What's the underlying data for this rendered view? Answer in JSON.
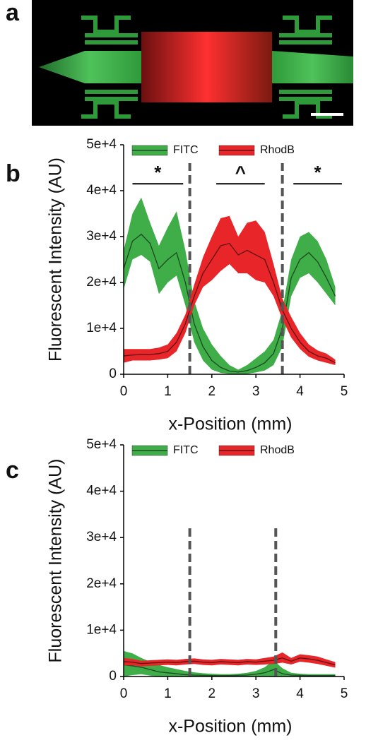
{
  "image_panel": {
    "label": "a"
  },
  "chart_data": [
    {
      "type": "line",
      "label": "b",
      "xlabel": "x-Position (mm)",
      "ylabel": "Fluorescent Intensity (AU)",
      "x": [
        0,
        0.2,
        0.4,
        0.6,
        0.8,
        1.0,
        1.2,
        1.4,
        1.6,
        1.8,
        2.0,
        2.2,
        2.4,
        2.6,
        2.8,
        3.0,
        3.2,
        3.4,
        3.6,
        3.8,
        4.0,
        4.2,
        4.4,
        4.6,
        4.8
      ],
      "series": [
        {
          "name": "FITC",
          "color": "#3fae49",
          "values": [
            23000,
            29000,
            30500,
            28500,
            23000,
            25000,
            26500,
            20000,
            11000,
            6000,
            3000,
            1500,
            700,
            500,
            800,
            1500,
            2500,
            4500,
            10000,
            21000,
            25000,
            26500,
            24500,
            21000,
            17000
          ],
          "lower": [
            18500,
            25000,
            26000,
            24500,
            17500,
            20000,
            21500,
            15000,
            7000,
            3000,
            1000,
            300,
            100,
            0,
            100,
            400,
            800,
            2000,
            6000,
            17000,
            21000,
            22000,
            20000,
            17500,
            15000
          ],
          "upper": [
            27000,
            35000,
            38500,
            33000,
            28000,
            32000,
            35500,
            27000,
            16000,
            10000,
            6500,
            4000,
            2000,
            1000,
            2000,
            3500,
            5000,
            7500,
            14000,
            25000,
            30000,
            31000,
            29000,
            25000,
            19000
          ]
        },
        {
          "name": "RhodB",
          "color": "#e8262a",
          "values": [
            4000,
            4200,
            4300,
            4300,
            4500,
            5000,
            7000,
            11000,
            17000,
            22000,
            25000,
            28000,
            28500,
            26000,
            27000,
            26000,
            25000,
            20000,
            14000,
            10000,
            7000,
            5000,
            4000,
            3500,
            2500
          ],
          "lower": [
            2500,
            3000,
            3000,
            3000,
            3200,
            3500,
            5000,
            9000,
            15000,
            19000,
            20500,
            22500,
            24000,
            22000,
            22000,
            20500,
            20000,
            17000,
            12000,
            8000,
            5500,
            3800,
            3000,
            2500,
            2000
          ],
          "upper": [
            5500,
            5500,
            5500,
            5500,
            5800,
            6500,
            9000,
            13000,
            19500,
            25500,
            30000,
            34000,
            34500,
            30000,
            33000,
            33500,
            31000,
            24000,
            16500,
            12500,
            9000,
            6500,
            5200,
            4500,
            3200
          ]
        }
      ],
      "xlim": [
        0,
        5
      ],
      "xticks": [
        0,
        1,
        2,
        3,
        4,
        5
      ],
      "ylim": [
        0,
        50000
      ],
      "yticks": [
        0,
        {
          "value": 10000,
          "label": "1e+4"
        },
        {
          "value": 20000,
          "label": "2e+4"
        },
        {
          "value": 30000,
          "label": "3e+4"
        },
        {
          "value": 40000,
          "label": "4e+4"
        },
        {
          "value": 50000,
          "label": "5e+4"
        }
      ],
      "vlines": [
        {
          "x": 1.5,
          "top": 46000
        },
        {
          "x": 3.6,
          "top": 46000
        }
      ],
      "annotations": [
        {
          "text": "*",
          "x0": 0.2,
          "x1": 1.35,
          "y": 41500
        },
        {
          "text": "^",
          "x0": 2.1,
          "x1": 3.2,
          "y": 41500
        },
        {
          "text": "*",
          "x0": 3.85,
          "x1": 4.95,
          "y": 41500
        }
      ],
      "legend": "top"
    },
    {
      "type": "line",
      "label": "c",
      "xlabel": "x-Position (mm)",
      "ylabel": "Fluorescent Intensity (AU)",
      "x": [
        0,
        0.2,
        0.4,
        0.6,
        0.8,
        1.0,
        1.2,
        1.4,
        1.6,
        1.8,
        2.0,
        2.2,
        2.4,
        2.6,
        2.8,
        3.0,
        3.2,
        3.4,
        3.6,
        3.8,
        4.0,
        4.2,
        4.4,
        4.6,
        4.8
      ],
      "series": [
        {
          "name": "FITC",
          "color": "#3fae49",
          "values": [
            2500,
            2300,
            2000,
            1500,
            1000,
            800,
            600,
            400,
            300,
            250,
            200,
            200,
            200,
            250,
            300,
            500,
            800,
            1500,
            600,
            300,
            250,
            200,
            200,
            200,
            200
          ],
          "lower": [
            0,
            300,
            500,
            200,
            0,
            0,
            0,
            0,
            0,
            0,
            0,
            0,
            0,
            0,
            0,
            0,
            0,
            0,
            0,
            0,
            0,
            0,
            0,
            0,
            0
          ],
          "upper": [
            5500,
            5000,
            4000,
            3200,
            2500,
            2000,
            1600,
            1200,
            900,
            700,
            600,
            500,
            500,
            600,
            800,
            1200,
            2000,
            3500,
            1800,
            800,
            600,
            500,
            500,
            500,
            500
          ]
        },
        {
          "name": "RhodB",
          "color": "#e8262a",
          "values": [
            3200,
            3100,
            2800,
            2900,
            3000,
            3100,
            3000,
            3200,
            3300,
            3100,
            3000,
            3200,
            3100,
            3000,
            3200,
            3100,
            3300,
            3500,
            4000,
            3300,
            4000,
            3800,
            3500,
            3000,
            2500
          ],
          "lower": [
            2400,
            2400,
            2200,
            2300,
            2400,
            2500,
            2400,
            2600,
            2700,
            2500,
            2400,
            2600,
            2500,
            2400,
            2600,
            2500,
            2600,
            2700,
            3000,
            2600,
            3200,
            3000,
            2700,
            2300,
            1900
          ],
          "upper": [
            4000,
            3800,
            3400,
            3500,
            3600,
            3700,
            3600,
            3800,
            3900,
            3700,
            3600,
            3800,
            3700,
            3600,
            3800,
            3700,
            4000,
            4300,
            5200,
            4000,
            4800,
            4600,
            4300,
            3700,
            3100
          ]
        }
      ],
      "xlim": [
        0,
        5
      ],
      "xticks": [
        0,
        1,
        2,
        3,
        4,
        5
      ],
      "ylim": [
        0,
        50000
      ],
      "yticks": [
        0,
        {
          "value": 10000,
          "label": "1e+4"
        },
        {
          "value": 20000,
          "label": "2e+4"
        },
        {
          "value": 30000,
          "label": "3e+4"
        },
        {
          "value": 40000,
          "label": "4e+4"
        },
        {
          "value": 50000,
          "label": "5e+4"
        }
      ],
      "vlines": [
        {
          "x": 1.5,
          "top": 32000
        },
        {
          "x": 3.45,
          "top": 32000
        }
      ],
      "legend": "top"
    }
  ]
}
